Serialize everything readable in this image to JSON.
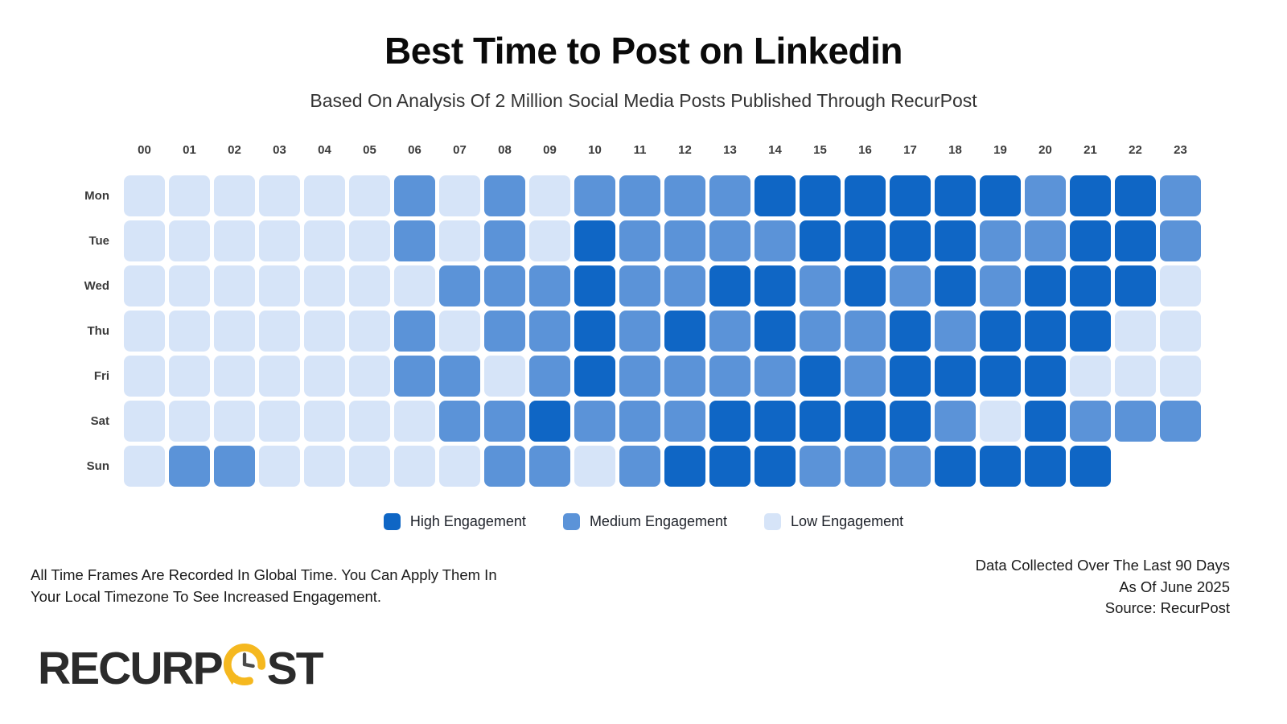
{
  "title": "Best Time to Post on Linkedin",
  "subtitle": "Based On Analysis Of 2 Million Social Media Posts Published Through RecurPost",
  "chart_data": {
    "type": "heatmap",
    "x_labels": [
      "00",
      "01",
      "02",
      "03",
      "04",
      "05",
      "06",
      "07",
      "08",
      "09",
      "10",
      "11",
      "12",
      "13",
      "14",
      "15",
      "16",
      "17",
      "18",
      "19",
      "20",
      "21",
      "22",
      "23"
    ],
    "y_labels": [
      "Mon",
      "Tue",
      "Wed",
      "Thu",
      "Fri",
      "Sat",
      "Sun"
    ],
    "levels": {
      "H": {
        "label": "High Engagement",
        "color": "#0F66C5"
      },
      "M": {
        "label": "Medium Engagement",
        "color": "#5B93D8"
      },
      "L": {
        "label": "Low Engagement",
        "color": "#D6E4F8"
      }
    },
    "legend_order": [
      "H",
      "M",
      "L"
    ],
    "empty_marker": ".",
    "rows": [
      "LLLLLLMLMLMMMMHHHHHHMHHM",
      "LLLLLLMLMLHMMMMHHHHMMHHM",
      "LLLLLLLMMMHMMHHMHMHMHHHL",
      "LLLLLLMLMMHMHMHMMHMHHHLL",
      "LLLLLLMMLMHMMMMHMHHHHLLL",
      "LLLLLLLMMHMMMHHHHHMLHMMM",
      "LMMLLLLLMMLMHHHMMMHHHH.."
    ]
  },
  "notes": {
    "left": [
      "All Time Frames Are Recorded In Global Time. You Can Apply Them In",
      "Your Local Timezone To See Increased Engagement."
    ],
    "right": [
      "Data Collected Over The Last 90 Days",
      "As Of June 2025",
      "Source: RecurPost"
    ]
  },
  "logo": {
    "text_left": "RECURP",
    "text_right": "ST",
    "clock_color": "#F5B81F",
    "hands_color": "#4b4b4b"
  }
}
